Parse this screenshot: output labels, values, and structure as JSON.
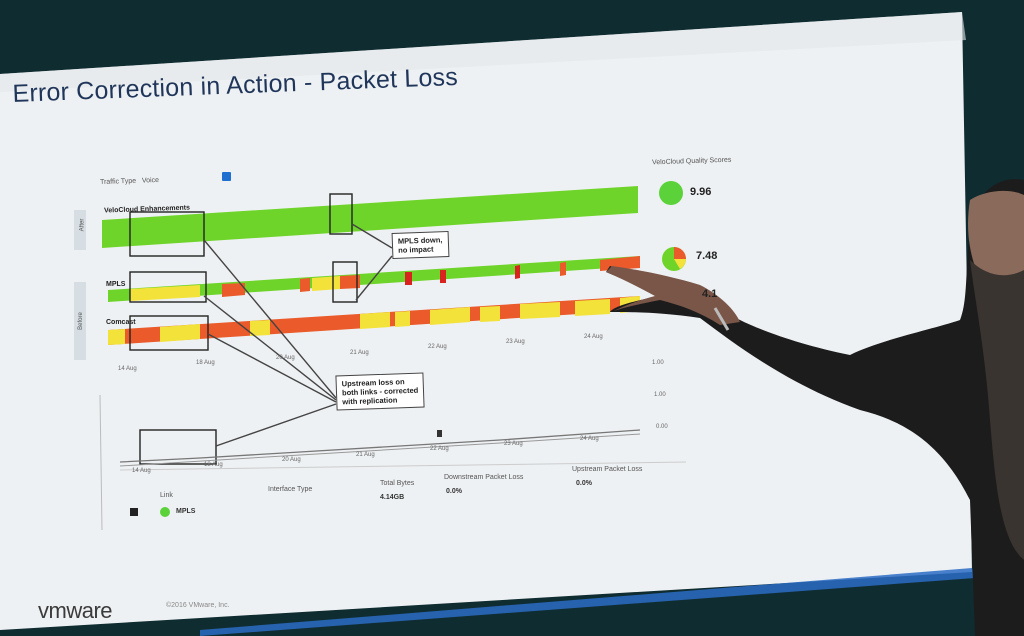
{
  "slide": {
    "title": "Error Correction in Action - Packet Loss",
    "traffic_type_label": "Traffic Type",
    "traffic_type_value": "Voice",
    "score_header": "VeloCloud Quality Scores",
    "scores": [
      {
        "value": "9.96",
        "color": "#5bd23a"
      },
      {
        "value": "7.48",
        "color": "#f0c417"
      },
      {
        "value": "4.1",
        "color": "#e2492c"
      }
    ],
    "rows": [
      {
        "label": "VeloCloud Enhancements"
      },
      {
        "label": "MPLS"
      },
      {
        "label": "Comcast"
      }
    ],
    "side_labels": [
      "After",
      "Before"
    ],
    "callouts": {
      "mpls_down": "MPLS down,\nno impact",
      "upstream": "Upstream loss on\nboth links - corrected\nwith replication"
    },
    "top_ticks": [
      "14 Aug",
      "18 Aug",
      "20 Aug",
      "21 Aug",
      "22 Aug",
      "23 Aug",
      "24 Aug"
    ],
    "bottom_ticks": [
      "14 Aug",
      "18 Aug",
      "20 Aug",
      "21 Aug",
      "22 Aug",
      "23 Aug",
      "24 Aug"
    ],
    "y_ticks": [
      "1.00",
      "1.00",
      "0.00"
    ],
    "legend_mpls": "MPLS",
    "table_headers": [
      "Link",
      "Interface Type",
      "Total Bytes",
      "Downstream Packet Loss",
      "Upstream Packet Loss"
    ],
    "table_values": [
      "4.14GB",
      "0.0%",
      "0.0%"
    ],
    "footer_logo": "vmware",
    "footer_copyright": "©2016 VMware, Inc.",
    "colors": {
      "green": "#6fd42a",
      "yellow": "#f2e23a",
      "orange": "#ea5a2a",
      "red": "#d9231f",
      "slide_white": "#f4f6f7",
      "title": "#1f3559"
    }
  }
}
